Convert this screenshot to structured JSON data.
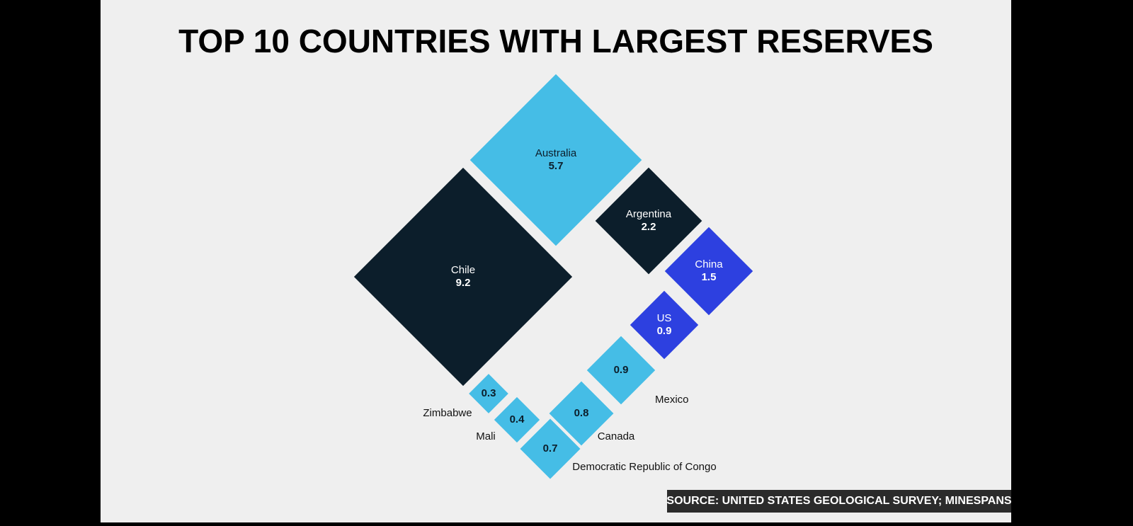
{
  "chart_data": {
    "type": "diamond",
    "title": "TOP 10 COUNTRIES WITH LARGEST RESERVES",
    "source": "SOURCE: UNITED STATES GEOLOGICAL SURVEY; MINESPANS",
    "categories": [
      "Australia",
      "Chile",
      "Argentina",
      "China",
      "US",
      "Mexico",
      "Canada",
      "Democratic Republic of Congo",
      "Mali",
      "Zimbabwe"
    ],
    "values": [
      5.7,
      9.2,
      2.2,
      1.5,
      0.9,
      0.9,
      0.8,
      0.7,
      0.4,
      0.3
    ],
    "colors": [
      "#45bde6",
      "#0c1e2b",
      "#0c1e2b",
      "#2d40e0",
      "#2d40e0",
      "#45bde6",
      "#45bde6",
      "#45bde6",
      "#45bde6",
      "#45bde6"
    ]
  }
}
